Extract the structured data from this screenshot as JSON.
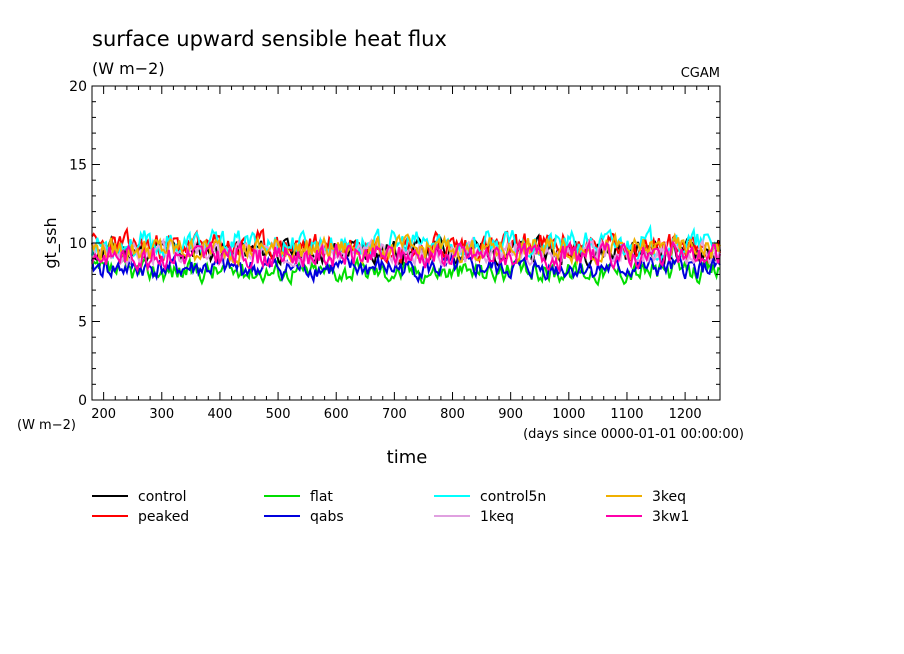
{
  "chart_data": {
    "type": "line",
    "title": "surface upward sensible heat flux",
    "units": "(W m−2)",
    "source_label": "CGAM",
    "ylabel": "gt_ssh",
    "y_units_label": "(W m−2)",
    "xlabel": "time",
    "x_units_label": "(days since 0000-01-01 00:00:00)",
    "xlim": [
      180,
      1260
    ],
    "ylim": [
      0,
      20
    ],
    "x_ticks": [
      200,
      300,
      400,
      500,
      600,
      700,
      800,
      900,
      1000,
      1100,
      1200
    ],
    "y_ticks": [
      0,
      5,
      10,
      15,
      20
    ],
    "grid": false,
    "legend_position": "bottom",
    "series": [
      {
        "name": "control",
        "color": "#000000",
        "mean": 9.5,
        "amp": 0.9,
        "seed": 11
      },
      {
        "name": "peaked",
        "color": "#ff0000",
        "mean": 9.8,
        "amp": 1.0,
        "seed": 23
      },
      {
        "name": "flat",
        "color": "#00dd00",
        "mean": 8.2,
        "amp": 0.8,
        "seed": 37
      },
      {
        "name": "qabs",
        "color": "#0000dd",
        "mean": 8.4,
        "amp": 0.8,
        "seed": 41
      },
      {
        "name": "control5n",
        "color": "#00ffff",
        "mean": 9.9,
        "amp": 1.0,
        "seed": 53
      },
      {
        "name": "1keq",
        "color": "#e0a0e0",
        "mean": 9.4,
        "amp": 0.8,
        "seed": 67
      },
      {
        "name": "3keq",
        "color": "#f0b000",
        "mean": 9.6,
        "amp": 0.9,
        "seed": 79
      },
      {
        "name": "3kw1",
        "color": "#ff00aa",
        "mean": 9.2,
        "amp": 0.9,
        "seed": 83
      }
    ]
  }
}
